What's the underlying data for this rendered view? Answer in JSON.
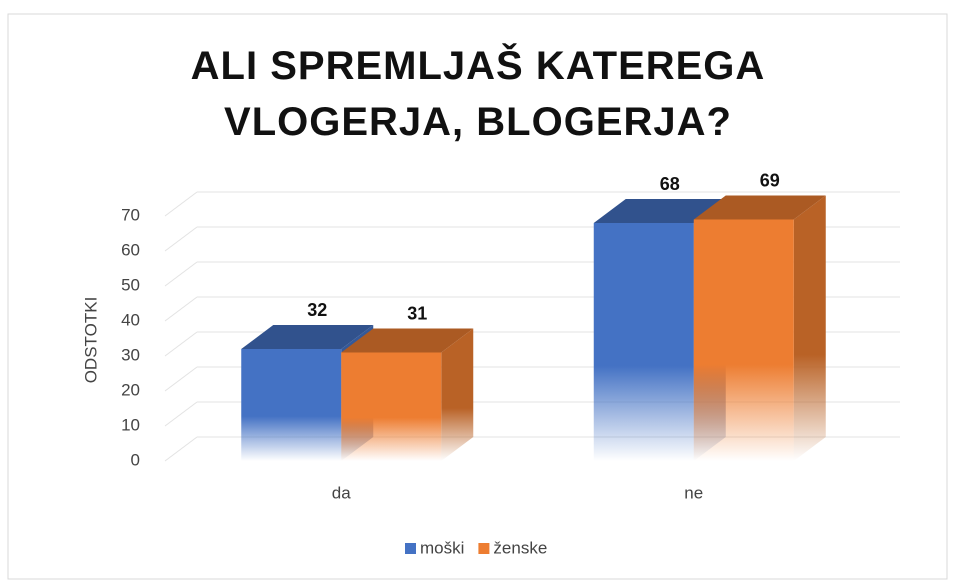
{
  "chart_data": {
    "type": "bar3d",
    "title": "ALI SPREMLJAŠ KATEREGA VLOGERJA, BLOGERJA?",
    "y_label": "ODSTOTKI",
    "categories": [
      "da",
      "ne"
    ],
    "series": [
      {
        "name": "moški",
        "color": "#4472c4",
        "values": [
          32,
          68
        ]
      },
      {
        "name": "ženske",
        "color": "#ed7d31",
        "values": [
          31,
          69
        ]
      }
    ],
    "ylim": [
      0,
      70
    ],
    "yticks": [
      0,
      10,
      20,
      30,
      40,
      50,
      60,
      70
    ],
    "grid": true,
    "legend": "bottom"
  }
}
